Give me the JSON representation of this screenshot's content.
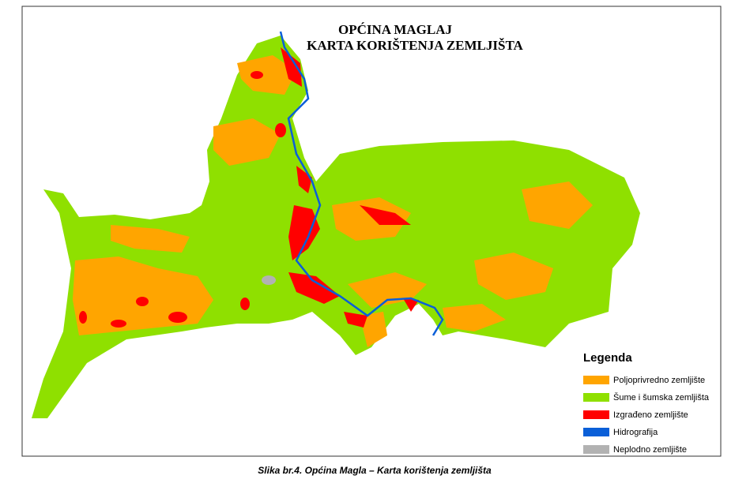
{
  "title": [
    "OPĆINA MAGLAJ",
    "KARTA KORIŠTENJA ZEMLJIŠTA"
  ],
  "legend": {
    "title": "Legenda",
    "items": [
      {
        "label": "Poljoprivredno zemljište",
        "color": "#ffa500"
      },
      {
        "label": "Šume i šumska zemljišta",
        "color": "#8fe000"
      },
      {
        "label": "Izgrađeno zemljište",
        "color": "#ff0000"
      },
      {
        "label": "Hidrografija",
        "color": "#0a5fd8"
      },
      {
        "label": "Neplodno zemljište",
        "color": "#b2b2b2"
      }
    ]
  },
  "caption": "Slika br.4. Općina Magla – Karta korištenja zemljišta"
}
